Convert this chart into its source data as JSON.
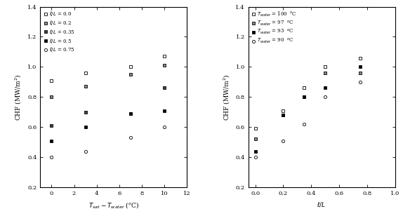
{
  "plot1": {
    "xlabel": "$T_{sat}-T_{water}$ ($^{o}$C)",
    "ylabel": "CHF (MW/m$^{2}$)",
    "xlim": [
      -1,
      12
    ],
    "ylim": [
      0.2,
      1.4
    ],
    "xticks": [
      0,
      2,
      4,
      6,
      8,
      10,
      12
    ],
    "yticks": [
      0.2,
      0.4,
      0.6,
      0.8,
      1.0,
      1.2,
      1.4
    ],
    "series": [
      {
        "label": "$\\it{\\ell/L}$ = 0.0",
        "marker": "s",
        "markersize": 3,
        "color": "black",
        "mfc": "white",
        "x": [
          0,
          3,
          7,
          10
        ],
        "y": [
          0.91,
          0.96,
          1.0,
          1.07
        ]
      },
      {
        "label": "$\\it{\\ell/L}$ = 0.2",
        "marker": "s",
        "markersize": 3,
        "color": "black",
        "mfc": "#888888",
        "x": [
          0,
          3,
          7,
          10
        ],
        "y": [
          0.8,
          0.87,
          0.95,
          1.01
        ]
      },
      {
        "label": "$\\it{\\ell/L}$ = 0.35",
        "marker": "s",
        "markersize": 3,
        "color": "black",
        "mfc": "#444444",
        "x": [
          0,
          3,
          7,
          10
        ],
        "y": [
          0.61,
          0.7,
          0.69,
          0.86
        ]
      },
      {
        "label": "$\\it{\\ell/L}$ = 0.5",
        "marker": "s",
        "markersize": 3,
        "color": "black",
        "mfc": "black",
        "x": [
          0,
          3,
          7,
          10
        ],
        "y": [
          0.51,
          0.6,
          0.69,
          0.71
        ]
      },
      {
        "label": "$\\it{\\ell/L}$ = 0.75",
        "marker": "o",
        "markersize": 3,
        "color": "black",
        "mfc": "white",
        "x": [
          0,
          3,
          7,
          10
        ],
        "y": [
          0.4,
          0.44,
          0.53,
          0.6
        ]
      }
    ]
  },
  "plot2": {
    "xlabel": "$\\it{\\ell/L}$",
    "ylabel": "CHF (MW/m$^{2}$)",
    "xlim": [
      -0.05,
      1.0
    ],
    "ylim": [
      0.2,
      1.4
    ],
    "xticks": [
      0.0,
      0.2,
      0.4,
      0.6,
      0.8,
      1.0
    ],
    "yticks": [
      0.2,
      0.4,
      0.6,
      0.8,
      1.0,
      1.2,
      1.4
    ],
    "series": [
      {
        "label": "$T_{water}$ = 100  $^{o}$C",
        "marker": "s",
        "markersize": 3,
        "color": "black",
        "mfc": "white",
        "x": [
          0.0,
          0.2,
          0.35,
          0.5,
          0.75
        ],
        "y": [
          0.59,
          0.71,
          0.86,
          1.0,
          1.06
        ]
      },
      {
        "label": "$T_{water}$ = 97  $^{o}$C",
        "marker": "s",
        "markersize": 3,
        "color": "black",
        "mfc": "#888888",
        "x": [
          0.0,
          0.2,
          0.35,
          0.5,
          0.75
        ],
        "y": [
          0.52,
          0.68,
          0.8,
          0.96,
          0.96
        ]
      },
      {
        "label": "$T_{water}$ = 93  $^{o}$C",
        "marker": "s",
        "markersize": 3,
        "color": "black",
        "mfc": "black",
        "x": [
          0.0,
          0.2,
          0.35,
          0.5,
          0.75
        ],
        "y": [
          0.44,
          0.68,
          0.8,
          0.86,
          1.0
        ]
      },
      {
        "label": "$T_{water}$ = 90  $^{o}$C",
        "marker": "o",
        "markersize": 3,
        "color": "black",
        "mfc": "white",
        "x": [
          0.0,
          0.2,
          0.35,
          0.5,
          0.75
        ],
        "y": [
          0.4,
          0.51,
          0.62,
          0.8,
          0.9
        ]
      }
    ]
  }
}
